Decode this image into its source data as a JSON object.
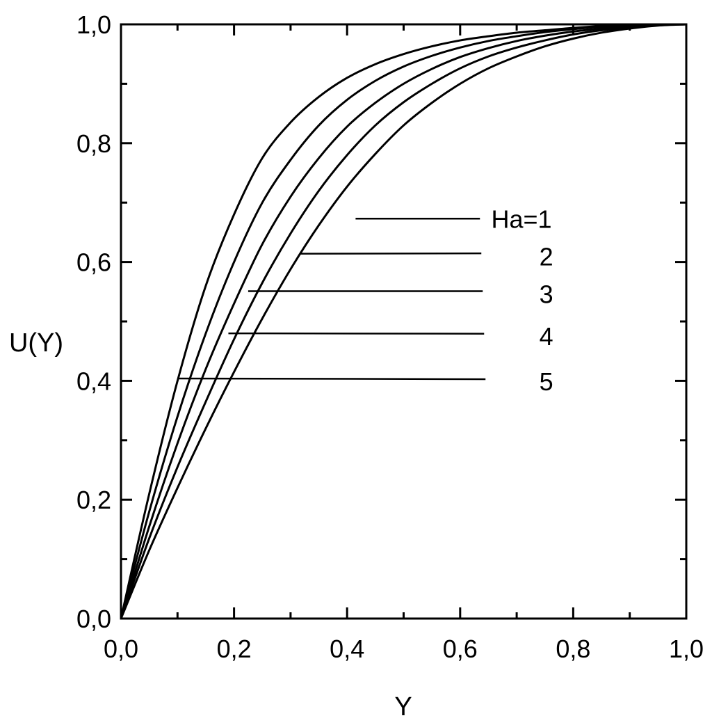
{
  "chart_data": {
    "type": "line",
    "xlabel": "Y",
    "ylabel": "U(Y)",
    "xlim": [
      0,
      1
    ],
    "ylim": [
      0,
      1
    ],
    "x_ticks": [
      "0,0",
      "0,2",
      "0,4",
      "0,6",
      "0,8",
      "1,0"
    ],
    "y_ticks": [
      "0,0",
      "0,2",
      "0,4",
      "0,6",
      "0,8",
      "1,0"
    ],
    "grid": false,
    "x": [
      0,
      0.05,
      0.1,
      0.15,
      0.2,
      0.25,
      0.3,
      0.35,
      0.4,
      0.45,
      0.5,
      0.55,
      0.6,
      0.65,
      0.7,
      0.75,
      0.8,
      0.85,
      0.9,
      0.95,
      1.0
    ],
    "series": [
      {
        "name": "Ha=1",
        "values": [
          0,
          0.21,
          0.4,
          0.56,
          0.68,
          0.775,
          0.835,
          0.878,
          0.91,
          0.933,
          0.95,
          0.963,
          0.973,
          0.98,
          0.986,
          0.99,
          0.994,
          0.997,
          0.999,
          1.0,
          1.0
        ]
      },
      {
        "name": "2",
        "values": [
          0,
          0.18,
          0.34,
          0.48,
          0.6,
          0.7,
          0.772,
          0.83,
          0.873,
          0.905,
          0.929,
          0.947,
          0.961,
          0.972,
          0.98,
          0.987,
          0.992,
          0.996,
          0.999,
          1.0,
          1.0
        ]
      },
      {
        "name": "3",
        "values": [
          0,
          0.155,
          0.295,
          0.42,
          0.53,
          0.63,
          0.71,
          0.775,
          0.828,
          0.868,
          0.9,
          0.925,
          0.945,
          0.96,
          0.972,
          0.981,
          0.988,
          0.993,
          0.997,
          0.999,
          1.0
        ]
      },
      {
        "name": "4",
        "values": [
          0,
          0.135,
          0.255,
          0.365,
          0.47,
          0.565,
          0.648,
          0.72,
          0.78,
          0.83,
          0.869,
          0.9,
          0.926,
          0.946,
          0.961,
          0.973,
          0.983,
          0.99,
          0.995,
          0.999,
          1.0
        ]
      },
      {
        "name": "5",
        "values": [
          0,
          0.115,
          0.22,
          0.32,
          0.415,
          0.505,
          0.588,
          0.662,
          0.727,
          0.782,
          0.83,
          0.868,
          0.9,
          0.926,
          0.946,
          0.963,
          0.976,
          0.986,
          0.993,
          0.998,
          1.0
        ]
      }
    ],
    "labels": [
      {
        "text": "Ha=1",
        "anchor_x": 0.415,
        "anchor_y": 0.673,
        "label_x": 0.655
      },
      {
        "text": "2",
        "anchor_x": 0.318,
        "anchor_y": 0.614,
        "label_x": 0.74
      },
      {
        "text": "3",
        "anchor_x": 0.225,
        "anchor_y": 0.551,
        "label_x": 0.74
      },
      {
        "text": "4",
        "anchor_x": 0.19,
        "anchor_y": 0.48,
        "label_x": 0.74
      },
      {
        "text": "5",
        "anchor_x": 0.1,
        "anchor_y": 0.404,
        "label_x": 0.74
      }
    ]
  }
}
